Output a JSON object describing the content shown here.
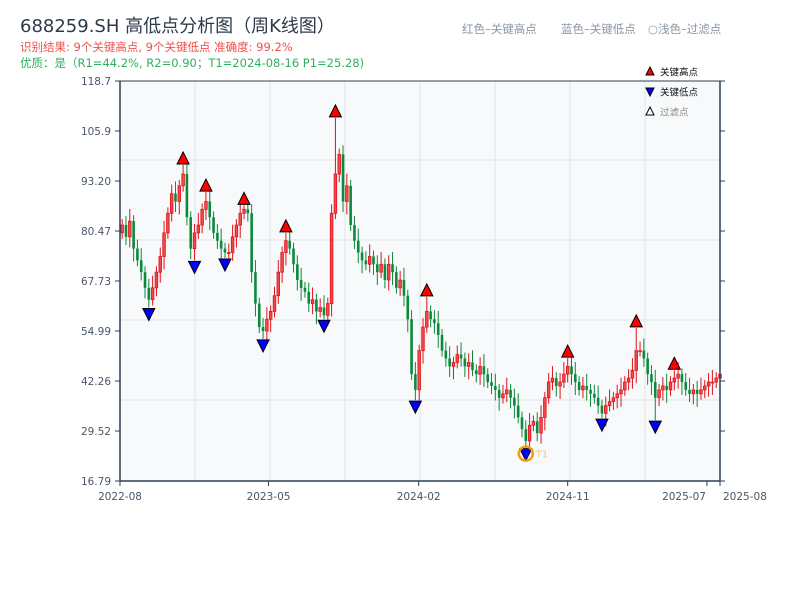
{
  "header": {
    "title": "688259.SH 高低点分析图（周K线图）",
    "result_line": "识别结果: 9个关键高点, 9个关键低点   准确度: 99.2%",
    "quality_line": "优质：是（R1=44.2%, R2=0.90；T1=2024-08-16 P1=25.28)",
    "hint_red": "红色–关键高点",
    "hint_blue": "蓝色–关键低点",
    "hint_light": "○浅色–过滤点"
  },
  "colors": {
    "up": "#e0121b",
    "down": "#0a8a3a",
    "key_high": "#ff0000",
    "key_low": "#0000ff",
    "t1_ring": "#f39c12",
    "plot_bg": "#f7f9fb",
    "axis": "#2d3e50"
  },
  "chart_data": {
    "type": "candlestick",
    "title": "688259.SH 高低点分析图（周K线图）",
    "interval": "weekly",
    "ylim": [
      16.79,
      118.7
    ],
    "xlim": [
      "2022-08-01",
      "2025-08-08"
    ],
    "yticks": [
      "16.79",
      "29.52",
      "42.26",
      "54.99",
      "67.73",
      "80.47",
      "93.20",
      "105.9",
      "118.7"
    ],
    "xticks": [
      {
        "label": "2022-08",
        "date": "2022-08-01"
      },
      {
        "label": "2023-05",
        "date": "2023-05-01"
      },
      {
        "label": "2024-02",
        "date": "2024-02-01"
      },
      {
        "label": "2024-11",
        "date": "2024-11-01"
      },
      {
        "label": "2025-07",
        "date": "2025-07-15"
      },
      {
        "label": "2025-08",
        "date": "2025-08-08"
      }
    ],
    "grid": true,
    "first_open": 80,
    "closes": [
      82,
      79,
      83,
      76,
      73,
      70,
      66,
      63,
      66,
      70,
      74,
      80,
      85,
      90,
      88,
      92,
      95,
      84,
      76,
      80,
      82,
      86,
      88,
      84,
      80,
      78,
      76,
      75,
      75,
      79,
      82,
      85,
      86,
      85,
      70,
      62,
      56,
      55,
      58,
      60,
      64,
      70,
      75,
      78,
      76,
      72,
      68,
      66,
      65,
      62,
      63,
      60,
      61,
      59,
      62,
      85,
      95,
      100,
      88,
      92,
      82,
      78,
      75,
      73,
      72,
      74,
      72,
      70,
      72,
      68,
      72,
      70,
      66,
      68,
      64,
      58,
      44,
      40,
      50,
      56,
      60,
      58,
      57,
      54,
      50,
      48,
      46,
      47,
      49,
      48,
      46,
      47,
      45,
      44,
      46,
      44,
      42,
      41,
      40,
      38,
      39,
      40,
      38,
      36,
      33,
      30,
      27,
      31,
      32,
      29,
      33,
      38,
      42,
      43,
      41,
      42,
      44,
      46,
      44,
      42,
      40,
      41,
      40,
      39,
      38,
      36,
      34,
      36,
      37,
      38,
      39,
      40,
      42,
      43,
      45,
      50,
      50,
      48,
      44,
      42,
      38,
      40,
      41,
      40,
      42,
      43,
      44,
      42,
      40,
      39,
      40,
      39,
      40,
      41,
      42,
      42,
      43,
      44
    ],
    "key_highs": [
      {
        "date": "2022-11-25",
        "price": 97.3
      },
      {
        "date": "2023-01-06",
        "price": 90.4
      },
      {
        "date": "2023-03-17",
        "price": 87.0
      },
      {
        "date": "2023-06-02",
        "price": 80.0
      },
      {
        "date": "2023-09-01",
        "price": 109.3
      },
      {
        "date": "2024-02-16",
        "price": 63.7
      },
      {
        "date": "2024-11-01",
        "price": 48.1
      },
      {
        "date": "2025-03-07",
        "price": 55.8
      },
      {
        "date": "2025-05-16",
        "price": 45.0
      }
    ],
    "key_lows": [
      {
        "date": "2022-09-23",
        "price": 61.0
      },
      {
        "date": "2022-12-16",
        "price": 73.0
      },
      {
        "date": "2023-02-10",
        "price": 73.6
      },
      {
        "date": "2023-04-21",
        "price": 53.0
      },
      {
        "date": "2023-08-11",
        "price": 58.0
      },
      {
        "date": "2024-01-26",
        "price": 37.4
      },
      {
        "date": "2024-08-16",
        "price": 25.28
      },
      {
        "date": "2025-01-03",
        "price": 32.8
      },
      {
        "date": "2025-04-11",
        "price": 32.3
      }
    ],
    "t1": {
      "label": "T1",
      "date": "2024-08-16",
      "price": 25.28
    },
    "legend": {
      "placement": "top-right",
      "items": [
        {
          "label": "关键高点",
          "marker": "triangle-up",
          "color": "#ff0000"
        },
        {
          "label": "关键低点",
          "marker": "triangle-down",
          "color": "#0000ff"
        },
        {
          "label": "过滤点",
          "marker": "triangle-up-hollow",
          "color": "#888888"
        }
      ]
    }
  }
}
